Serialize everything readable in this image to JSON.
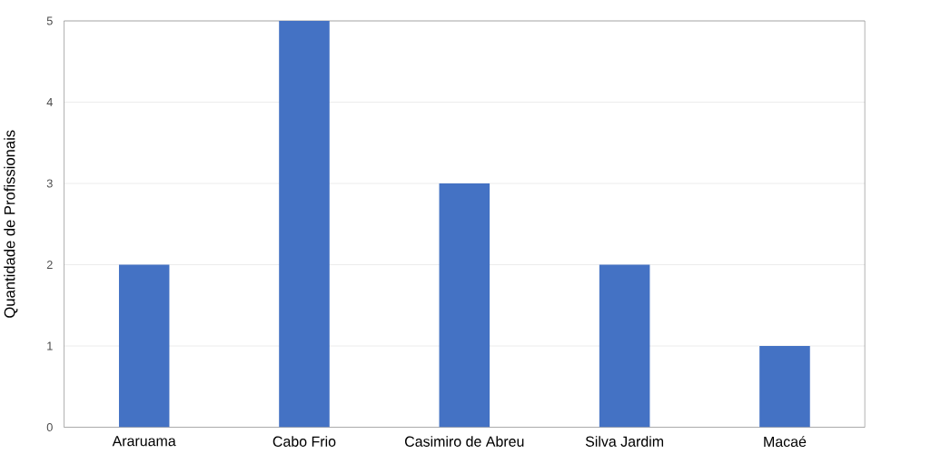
{
  "chart_data": {
    "type": "bar",
    "ylabel": "Quantidade de Profissionais",
    "categories": [
      "Araruama",
      "Cabo Frio",
      "Casimiro de Abreu",
      "Silva Jardim",
      "Macaé"
    ],
    "values": [
      2,
      5,
      3,
      2,
      1
    ],
    "color": "#4472c4",
    "ylim": [
      0,
      5
    ],
    "yticks": [
      0,
      1,
      2,
      3,
      4,
      5
    ],
    "grid": "y"
  }
}
